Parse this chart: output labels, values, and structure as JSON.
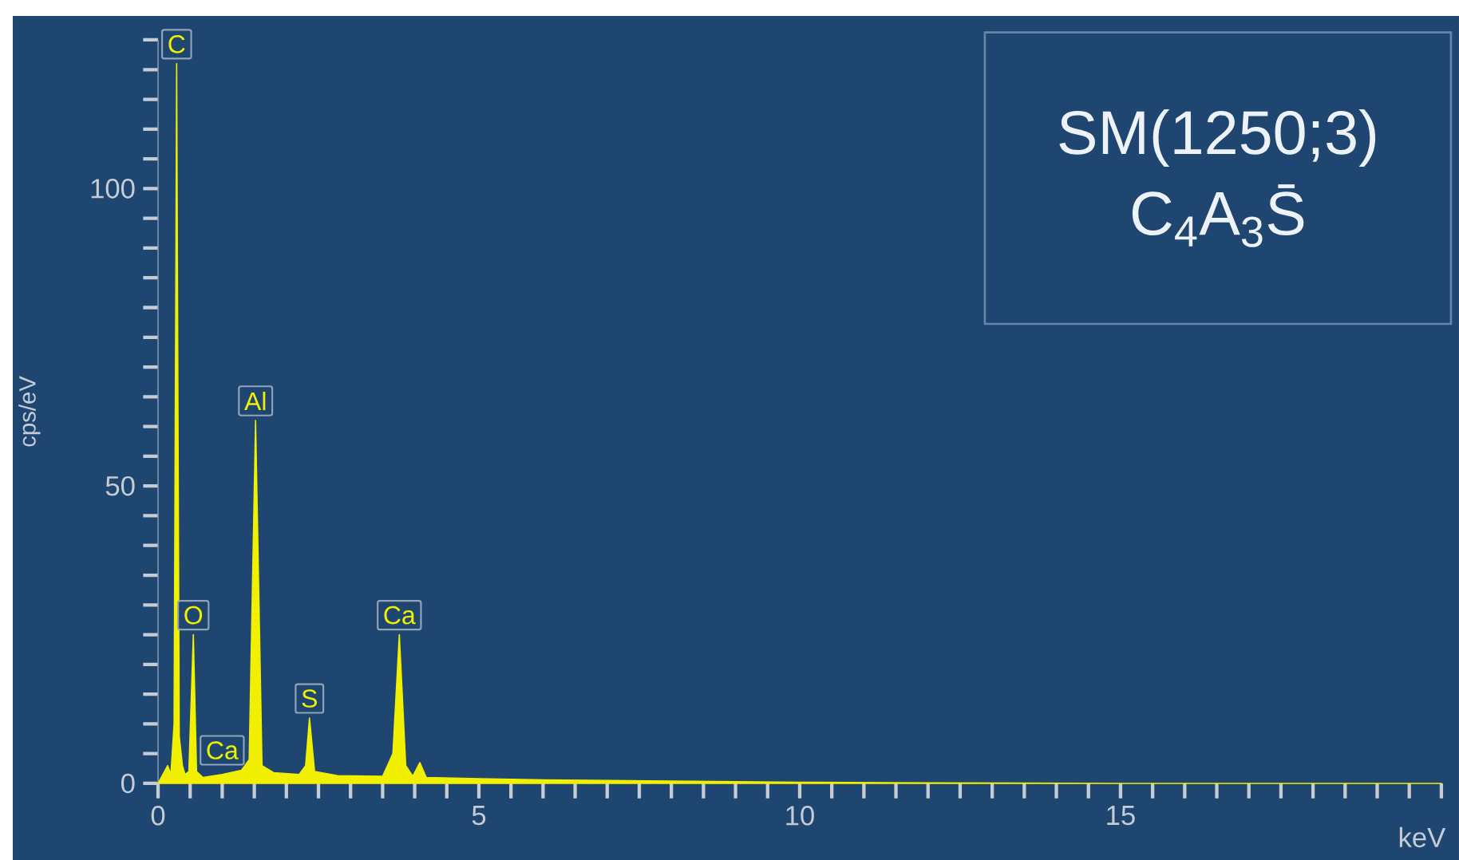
{
  "chart_data": {
    "type": "area",
    "title": "SM(1250;3)",
    "subtitle": "C$_{4}$A$_{3}$S̄",
    "xlabel": "keV",
    "ylabel": "cps/eV",
    "x": [
      0,
      0.1,
      0.15,
      0.2,
      0.25,
      0.29,
      0.33,
      0.38,
      0.42,
      0.48,
      0.55,
      0.6,
      0.7,
      1.0,
      1.3,
      1.42,
      1.52,
      1.62,
      1.8,
      2.2,
      2.3,
      2.36,
      2.44,
      2.8,
      3.5,
      3.66,
      3.76,
      3.86,
      3.97,
      4.08,
      4.18,
      5,
      6,
      8,
      10,
      12,
      15,
      20
    ],
    "values": [
      0,
      2,
      3,
      1.5,
      10,
      121,
      8,
      3,
      1.5,
      2,
      25,
      2,
      1,
      1.5,
      2.2,
      4,
      61,
      3,
      1.8,
      1.5,
      3,
      11,
      2,
      1.3,
      1.2,
      5,
      25,
      3,
      1.2,
      3.5,
      1,
      0.8,
      0.6,
      0.4,
      0.2,
      0.1,
      0,
      0
    ],
    "color": "#f0f000",
    "xlim": [
      0,
      20.2
    ],
    "ylim": [
      0,
      125
    ],
    "xticks": [
      0,
      {
        "value": 0.5,
        "label": null
      },
      {
        "value": 1,
        "label": null
      },
      {
        "value": 1.5,
        "label": null
      },
      {
        "value": 2,
        "label": null
      },
      {
        "value": 2.5,
        "label": null
      },
      {
        "value": 3,
        "label": null
      },
      {
        "value": 3.5,
        "label": null
      },
      {
        "value": 4,
        "label": null
      },
      {
        "value": 4.5,
        "label": null
      },
      5,
      {
        "value": 5.5,
        "label": null
      },
      {
        "value": 6,
        "label": null
      },
      {
        "value": 6.5,
        "label": null
      },
      {
        "value": 7,
        "label": null
      },
      {
        "value": 7.5,
        "label": null
      },
      {
        "value": 8,
        "label": null
      },
      {
        "value": 8.5,
        "label": null
      },
      {
        "value": 9,
        "label": null
      },
      {
        "value": 9.5,
        "label": null
      },
      10,
      {
        "value": 10.5,
        "label": null
      },
      {
        "value": 11,
        "label": null
      },
      {
        "value": 11.5,
        "label": null
      },
      {
        "value": 12,
        "label": null
      },
      {
        "value": 12.5,
        "label": null
      },
      {
        "value": 13,
        "label": null
      },
      {
        "value": 13.5,
        "label": null
      },
      {
        "value": 14,
        "label": null
      },
      {
        "value": 14.5,
        "label": null
      },
      15,
      {
        "value": 15.5,
        "label": null
      },
      {
        "value": 16,
        "label": null
      },
      {
        "value": 16.5,
        "label": null
      },
      {
        "value": 17,
        "label": null
      },
      {
        "value": 17.5,
        "label": null
      },
      {
        "value": 18,
        "label": null
      },
      {
        "value": 18.5,
        "label": null
      },
      {
        "value": 19,
        "label": null
      },
      {
        "value": 19.5,
        "label": null
      },
      {
        "value": 20,
        "label": null
      }
    ],
    "yticks": [
      0,
      {
        "value": 5,
        "label": null
      },
      {
        "value": 10,
        "label": null
      },
      {
        "value": 15,
        "label": null
      },
      {
        "value": 20,
        "label": null
      },
      {
        "value": 25,
        "label": null
      },
      {
        "value": 30,
        "label": null
      },
      {
        "value": 35,
        "label": null
      },
      {
        "value": 40,
        "label": null
      },
      {
        "value": 45,
        "label": null
      },
      50,
      {
        "value": 55,
        "label": null
      },
      {
        "value": 60,
        "label": null
      },
      {
        "value": 65,
        "label": null
      },
      {
        "value": 70,
        "label": null
      },
      {
        "value": 75,
        "label": null
      },
      {
        "value": 80,
        "label": null
      },
      {
        "value": 85,
        "label": null
      },
      {
        "value": 90,
        "label": null
      },
      {
        "value": 95,
        "label": null
      },
      100,
      {
        "value": 105,
        "label": null
      },
      {
        "value": 110,
        "label": null
      },
      {
        "value": 115,
        "label": null
      },
      {
        "value": 120,
        "label": null
      },
      {
        "value": 125,
        "label": null
      }
    ],
    "annotations": [
      {
        "text": "C",
        "x": 0.29,
        "y": 121
      },
      {
        "text": "Ca",
        "x": 0.35,
        "y": 3
      },
      {
        "text": "O",
        "x": 0.55,
        "y": 25
      },
      {
        "text": "Al",
        "x": 1.52,
        "y": 61
      },
      {
        "text": "S",
        "x": 2.36,
        "y": 11
      },
      {
        "text": "Ca",
        "x": 3.76,
        "y": 25
      }
    ]
  }
}
